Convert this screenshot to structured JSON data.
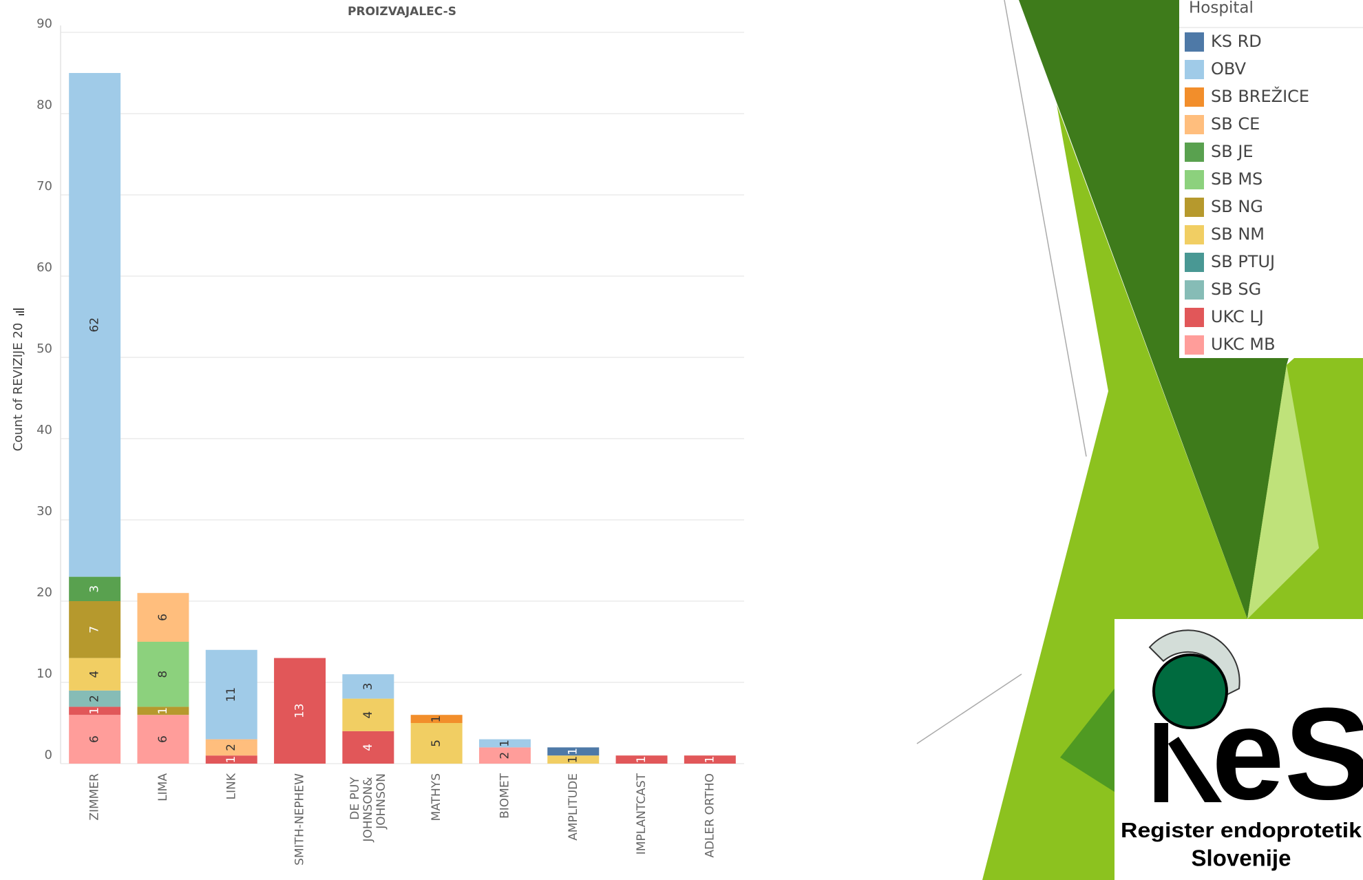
{
  "chart_data": {
    "type": "stacked-bar",
    "title": "PROIZVAJALEC-S",
    "y_label": "Count of REVIZIJE 20",
    "categories": [
      "ZIMMER",
      "LIMA",
      "LINK",
      "SMITH-NEPHEW",
      "DE PUY JOHNSON& JOHNSON",
      "MATHYS",
      "BIOMET",
      "AMPLITUDE",
      "IMPLANTCAST",
      "ADLER ORTHO"
    ],
    "series": [
      {
        "name": "KS RD",
        "color": "#4e79a7",
        "values": [
          null,
          null,
          null,
          null,
          null,
          null,
          null,
          1,
          null,
          null
        ]
      },
      {
        "name": "OBV",
        "color": "#a0cbe8",
        "values": [
          62,
          null,
          11,
          null,
          3,
          null,
          1,
          null,
          null,
          null
        ]
      },
      {
        "name": "SB BREŽICE",
        "color": "#f28e2b",
        "values": [
          null,
          null,
          null,
          null,
          null,
          1,
          null,
          null,
          null,
          null
        ]
      },
      {
        "name": "SB CE",
        "color": "#ffbe7d",
        "values": [
          null,
          6,
          2,
          null,
          null,
          null,
          null,
          null,
          null,
          null
        ]
      },
      {
        "name": "SB JE",
        "color": "#59a14f",
        "values": [
          3,
          null,
          null,
          null,
          null,
          null,
          null,
          null,
          null,
          null
        ]
      },
      {
        "name": "SB MS",
        "color": "#8cd17d",
        "values": [
          null,
          8,
          null,
          null,
          null,
          null,
          null,
          null,
          null,
          null
        ]
      },
      {
        "name": "SB NG",
        "color": "#b6992d",
        "values": [
          7,
          1,
          null,
          null,
          null,
          null,
          null,
          null,
          null,
          null
        ]
      },
      {
        "name": "SB NM",
        "color": "#f1ce63",
        "values": [
          4,
          null,
          null,
          null,
          4,
          5,
          null,
          1,
          null,
          null
        ]
      },
      {
        "name": "SB PTUJ",
        "color": "#499894",
        "values": [
          null,
          null,
          null,
          null,
          null,
          null,
          null,
          null,
          null,
          null
        ]
      },
      {
        "name": "SB SG",
        "color": "#86bcb6",
        "values": [
          2,
          null,
          null,
          null,
          null,
          null,
          null,
          null,
          null,
          null
        ]
      },
      {
        "name": "UKC LJ",
        "color": "#e15759",
        "values": [
          1,
          null,
          1,
          13,
          4,
          null,
          null,
          null,
          1,
          1
        ]
      },
      {
        "name": "UKC MB",
        "color": "#ff9d9a",
        "values": [
          6,
          6,
          null,
          null,
          null,
          null,
          2,
          null,
          null,
          null
        ]
      }
    ],
    "legend_title": "Hospital",
    "ylim": [
      0,
      90
    ],
    "yticks": [
      0,
      10,
      20,
      30,
      40,
      50,
      60,
      70,
      80,
      90
    ],
    "grid": true
  },
  "logo": {
    "mark": "eS",
    "line1": "Register endoprotetik",
    "line2": "Slovenije"
  }
}
